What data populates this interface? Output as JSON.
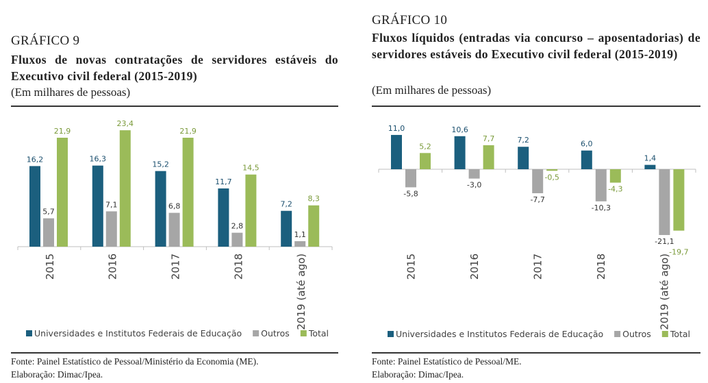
{
  "colors": {
    "blue": "#1b5f7e",
    "gray": "#a6a6a6",
    "green": "#9bbb59",
    "blue_text": "#1b4f6e",
    "gray_text": "#333333",
    "green_text": "#7a9a3a"
  },
  "chart_data": [
    {
      "type": "bar",
      "label": "GRÁFICO 9",
      "title": "Fluxos de novas contratações de servidores estáveis do Executivo civil federal (2015-2019)",
      "subtitle": "(Em milhares de pessoas)",
      "categories": [
        "2015",
        "2016",
        "2017",
        "2018",
        "2019 (até ago)"
      ],
      "series": [
        {
          "name": "Universidades e Institutos Federais de Educação",
          "values": [
            16.2,
            16.3,
            15.2,
            11.7,
            7.2
          ],
          "labels": [
            "16,2",
            "16,3",
            "15,2",
            "11,7",
            "7,2"
          ]
        },
        {
          "name": "Outros",
          "values": [
            5.7,
            7.1,
            6.8,
            2.8,
            1.1
          ],
          "labels": [
            "5,7",
            "7,1",
            "6,8",
            "2,8",
            "1,1"
          ]
        },
        {
          "name": "Total",
          "values": [
            21.9,
            23.4,
            21.9,
            14.5,
            8.3
          ],
          "labels": [
            "21,9",
            "23,4",
            "21,9",
            "14,5",
            "8,3"
          ]
        }
      ],
      "legend": "bottom",
      "grid": false,
      "source": "Fonte: Painel Estatístico de Pessoal/Ministério da Economia (ME).",
      "credit": "Elaboração: Dimac/Ipea."
    },
    {
      "type": "bar",
      "label": "GRÁFICO 10",
      "title": "Fluxos líquidos (entradas via concurso – aposentadorias) de servidores estáveis do Executivo civil federal (2015-2019)",
      "subtitle": "(Em milhares de pessoas)",
      "categories": [
        "2015",
        "2016",
        "2017",
        "2018",
        "2019 (até ago)"
      ],
      "series": [
        {
          "name": "Universidades e Institutos Federais de Educação",
          "values": [
            11.0,
            10.6,
            7.2,
            6.0,
            1.4
          ],
          "labels": [
            "11,0",
            "10,6",
            "7,2",
            "6,0",
            "1,4"
          ]
        },
        {
          "name": "Outros",
          "values": [
            -5.8,
            -3.0,
            -7.7,
            -10.3,
            -21.1
          ],
          "labels": [
            "-5,8",
            "-3,0",
            "-7,7",
            "-10,3",
            "-21,1"
          ]
        },
        {
          "name": "Total",
          "values": [
            5.2,
            7.7,
            -0.5,
            -4.3,
            -19.7
          ],
          "labels": [
            "5,2",
            "7,7",
            "-0,5",
            "-4,3",
            "-19,7"
          ]
        }
      ],
      "legend": "bottom",
      "grid": false,
      "source": "Fonte: Painel Estatístico de Pessoal/ME.",
      "credit": "Elaboração: Dimac/Ipea."
    }
  ]
}
